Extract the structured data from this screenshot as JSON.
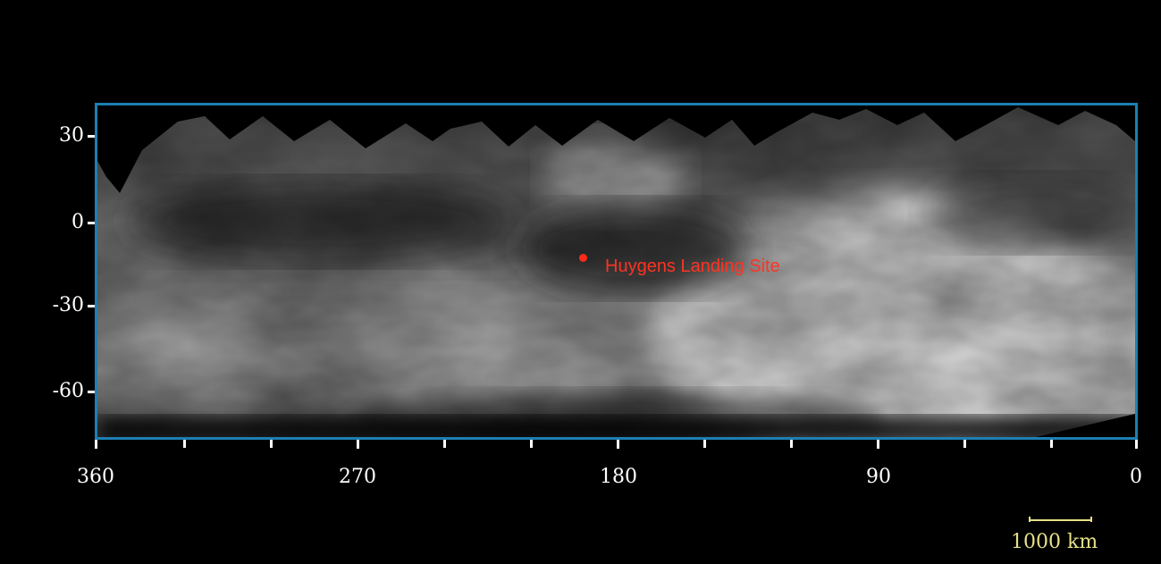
{
  "map": {
    "frame_color": "#1d7fb3",
    "y_axis": {
      "ticks": [
        {
          "value": 30,
          "label": "30"
        },
        {
          "value": 0,
          "label": "0"
        },
        {
          "value": -30,
          "label": "-30"
        },
        {
          "value": -60,
          "label": "-60"
        }
      ]
    },
    "x_axis": {
      "ticks": [
        {
          "value": 360,
          "label": "360"
        },
        {
          "value": 270,
          "label": "270"
        },
        {
          "value": 180,
          "label": "180"
        },
        {
          "value": 90,
          "label": "90"
        },
        {
          "value": 0,
          "label": "0"
        }
      ],
      "minor_ticks": [
        330,
        300,
        240,
        210,
        150,
        120,
        60,
        30
      ]
    },
    "marker": {
      "label": "Huygens Landing Site",
      "color": "#ff2a1a",
      "lon": 192,
      "lat": -13
    },
    "scale_bar": {
      "label": "1000 km",
      "color": "#e6e08a"
    }
  }
}
